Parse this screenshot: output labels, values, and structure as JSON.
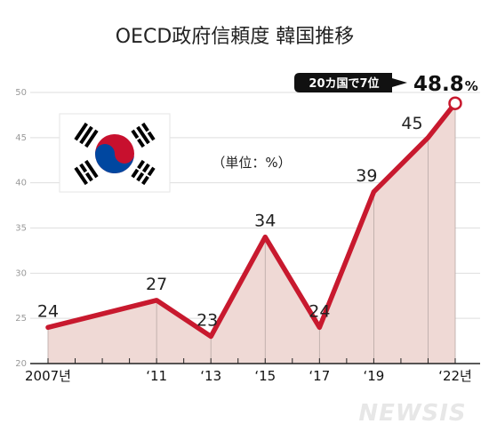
{
  "chart_data": {
    "type": "area",
    "title": "OECD政府信頼度 韓国推移",
    "unit_label": "（単位：%）",
    "x_tick_labels": [
      "2007년",
      "‘11",
      "‘13",
      "‘15",
      "‘17",
      "‘19",
      "‘22년"
    ],
    "y_ticks": [
      "20",
      "25",
      "30",
      "35",
      "40",
      "45",
      "50"
    ],
    "ylim": [
      20,
      50
    ],
    "points": [
      {
        "x": 2007,
        "y": 24,
        "label": "24"
      },
      {
        "x": 2011,
        "y": 27,
        "label": "27"
      },
      {
        "x": 2013,
        "y": 23,
        "label": "23"
      },
      {
        "x": 2015,
        "y": 34,
        "label": "34"
      },
      {
        "x": 2017,
        "y": 24,
        "label": "24"
      },
      {
        "x": 2019,
        "y": 39,
        "label": "39"
      },
      {
        "x": 2021,
        "y": 45,
        "label": "45"
      },
      {
        "x": 2022,
        "y": 48.8,
        "label": "48.8"
      }
    ],
    "final_value": "48.8",
    "final_unit": "%",
    "callout": "20カ国で7位",
    "line_color": "#c8192e",
    "fill_color": "#efd9d5",
    "grid": true
  },
  "flag": {
    "name": "south-korea-flag"
  },
  "watermark": "NEWSIS"
}
